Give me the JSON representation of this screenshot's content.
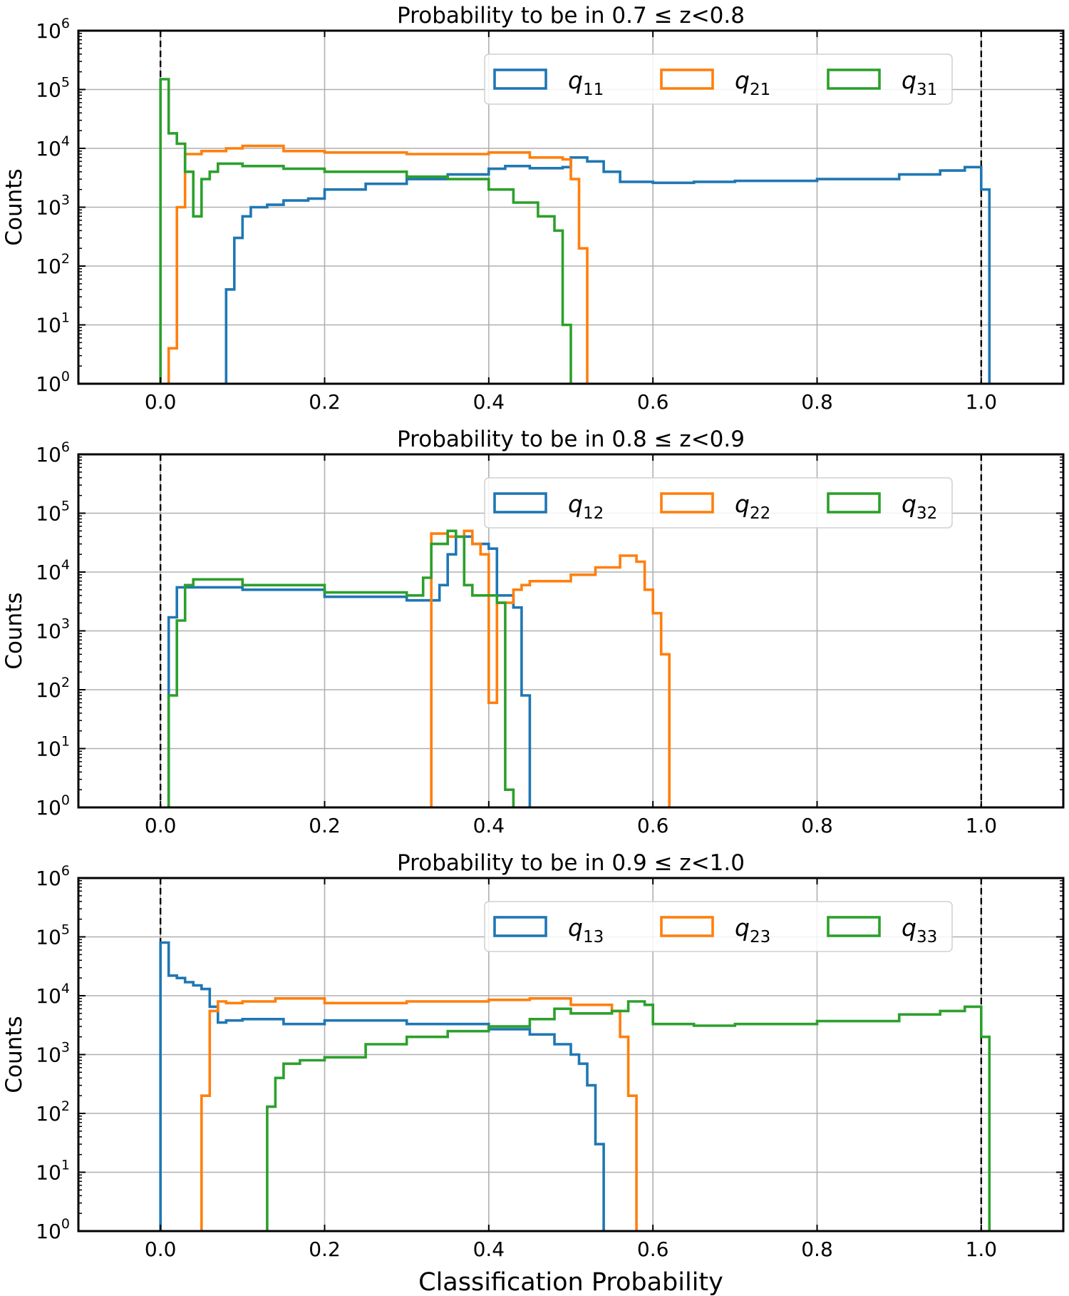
{
  "chart_data": [
    {
      "type": "histogram-step",
      "title": "Probability to be in 0.7 ≤ z<0.8",
      "xlabel": "",
      "ylabel": "Counts",
      "xlim": [
        -0.1,
        1.1
      ],
      "ylim": [
        1,
        1000000
      ],
      "yscale": "log",
      "grid": true,
      "legend_position": "top-right",
      "reference_lines": [
        0.0,
        1.0
      ],
      "x_ticks": [
        "0.0",
        "0.2",
        "0.4",
        "0.6",
        "0.8",
        "1.0"
      ],
      "series": [
        {
          "name": "q",
          "sub": "11",
          "color": "#1f77b4",
          "points": [
            [
              0.08,
              1
            ],
            [
              0.08,
              40
            ],
            [
              0.09,
              40
            ],
            [
              0.09,
              300
            ],
            [
              0.1,
              300
            ],
            [
              0.1,
              700
            ],
            [
              0.11,
              700
            ],
            [
              0.11,
              1000
            ],
            [
              0.13,
              1100
            ],
            [
              0.15,
              1300
            ],
            [
              0.18,
              1400
            ],
            [
              0.2,
              2000
            ],
            [
              0.25,
              2500
            ],
            [
              0.3,
              3000
            ],
            [
              0.35,
              3600
            ],
            [
              0.4,
              4500
            ],
            [
              0.42,
              5000
            ],
            [
              0.45,
              4600
            ],
            [
              0.49,
              4800
            ],
            [
              0.5,
              7000
            ],
            [
              0.52,
              6000
            ],
            [
              0.54,
              4000
            ],
            [
              0.56,
              2700
            ],
            [
              0.6,
              2600
            ],
            [
              0.65,
              2700
            ],
            [
              0.7,
              2800
            ],
            [
              0.8,
              3000
            ],
            [
              0.9,
              3600
            ],
            [
              0.95,
              4200
            ],
            [
              0.98,
              4800
            ],
            [
              1.0,
              4200
            ],
            [
              1.0,
              2000
            ],
            [
              1.01,
              2000
            ],
            [
              1.01,
              1
            ]
          ]
        },
        {
          "name": "q",
          "sub": "21",
          "color": "#ff7f0e",
          "points": [
            [
              0.01,
              1
            ],
            [
              0.01,
              4
            ],
            [
              0.02,
              4
            ],
            [
              0.02,
              1000
            ],
            [
              0.03,
              1000
            ],
            [
              0.03,
              8000
            ],
            [
              0.05,
              9000
            ],
            [
              0.08,
              10000
            ],
            [
              0.1,
              11000
            ],
            [
              0.15,
              9000
            ],
            [
              0.2,
              8500
            ],
            [
              0.3,
              8000
            ],
            [
              0.4,
              8500
            ],
            [
              0.45,
              7000
            ],
            [
              0.49,
              6500
            ],
            [
              0.5,
              3000
            ],
            [
              0.51,
              3000
            ],
            [
              0.51,
              200
            ],
            [
              0.52,
              200
            ],
            [
              0.52,
              1
            ]
          ]
        },
        {
          "name": "q",
          "sub": "31",
          "color": "#2ca02c",
          "points": [
            [
              0.0,
              1
            ],
            [
              0.0,
              150000
            ],
            [
              0.01,
              150000
            ],
            [
              0.01,
              18000
            ],
            [
              0.02,
              12000
            ],
            [
              0.03,
              8000
            ],
            [
              0.03,
              4000
            ],
            [
              0.04,
              4000
            ],
            [
              0.04,
              700
            ],
            [
              0.05,
              700
            ],
            [
              0.05,
              3000
            ],
            [
              0.06,
              4000
            ],
            [
              0.07,
              5500
            ],
            [
              0.1,
              5000
            ],
            [
              0.15,
              4500
            ],
            [
              0.2,
              4000
            ],
            [
              0.3,
              3300
            ],
            [
              0.35,
              3000
            ],
            [
              0.4,
              2000
            ],
            [
              0.43,
              1200
            ],
            [
              0.46,
              700
            ],
            [
              0.48,
              400
            ],
            [
              0.49,
              150
            ],
            [
              0.49,
              10
            ],
            [
              0.5,
              10
            ],
            [
              0.5,
              1
            ]
          ]
        }
      ]
    },
    {
      "type": "histogram-step",
      "title": "Probability to be in 0.8 ≤ z<0.9",
      "xlabel": "",
      "ylabel": "Counts",
      "xlim": [
        -0.1,
        1.1
      ],
      "ylim": [
        1,
        1000000
      ],
      "yscale": "log",
      "grid": true,
      "legend_position": "top-right",
      "reference_lines": [
        0.0,
        1.0
      ],
      "x_ticks": [
        "0.0",
        "0.2",
        "0.4",
        "0.6",
        "0.8",
        "1.0"
      ],
      "series": [
        {
          "name": "q",
          "sub": "12",
          "color": "#1f77b4",
          "points": [
            [
              0.01,
              1
            ],
            [
              0.01,
              1700
            ],
            [
              0.02,
              1700
            ],
            [
              0.02,
              5500
            ],
            [
              0.05,
              5500
            ],
            [
              0.1,
              5000
            ],
            [
              0.2,
              3800
            ],
            [
              0.3,
              3300
            ],
            [
              0.34,
              3300
            ],
            [
              0.34,
              6000
            ],
            [
              0.35,
              6000
            ],
            [
              0.35,
              20000
            ],
            [
              0.36,
              20000
            ],
            [
              0.36,
              40000
            ],
            [
              0.37,
              40000
            ],
            [
              0.38,
              30000
            ],
            [
              0.4,
              25000
            ],
            [
              0.41,
              20000
            ],
            [
              0.41,
              4000
            ],
            [
              0.42,
              4000
            ],
            [
              0.43,
              2500
            ],
            [
              0.44,
              2500
            ],
            [
              0.44,
              80
            ],
            [
              0.45,
              80
            ],
            [
              0.45,
              1
            ]
          ]
        },
        {
          "name": "q",
          "sub": "22",
          "color": "#ff7f0e",
          "points": [
            [
              0.33,
              1
            ],
            [
              0.33,
              45000
            ],
            [
              0.34,
              45000
            ],
            [
              0.35,
              40000
            ],
            [
              0.37,
              50000
            ],
            [
              0.38,
              30000
            ],
            [
              0.39,
              20000
            ],
            [
              0.4,
              10000
            ],
            [
              0.4,
              60
            ],
            [
              0.41,
              60
            ],
            [
              0.41,
              3000
            ],
            [
              0.42,
              3000
            ],
            [
              0.43,
              5000
            ],
            [
              0.44,
              6000
            ],
            [
              0.45,
              7000
            ],
            [
              0.5,
              9000
            ],
            [
              0.53,
              12000
            ],
            [
              0.56,
              19000
            ],
            [
              0.58,
              15000
            ],
            [
              0.59,
              5000
            ],
            [
              0.6,
              2000
            ],
            [
              0.61,
              2000
            ],
            [
              0.61,
              400
            ],
            [
              0.62,
              400
            ],
            [
              0.62,
              1
            ]
          ]
        },
        {
          "name": "q",
          "sub": "32",
          "color": "#2ca02c",
          "points": [
            [
              0.01,
              1
            ],
            [
              0.01,
              80
            ],
            [
              0.02,
              80
            ],
            [
              0.02,
              1500
            ],
            [
              0.03,
              1500
            ],
            [
              0.03,
              6000
            ],
            [
              0.04,
              7500
            ],
            [
              0.1,
              6000
            ],
            [
              0.2,
              4500
            ],
            [
              0.3,
              4000
            ],
            [
              0.32,
              4000
            ],
            [
              0.32,
              8000
            ],
            [
              0.33,
              8000
            ],
            [
              0.33,
              30000
            ],
            [
              0.34,
              30000
            ],
            [
              0.35,
              50000
            ],
            [
              0.36,
              40000
            ],
            [
              0.37,
              6000
            ],
            [
              0.38,
              4000
            ],
            [
              0.4,
              4000
            ],
            [
              0.41,
              4000
            ],
            [
              0.41,
              3000
            ],
            [
              0.42,
              3000
            ],
            [
              0.42,
              2
            ],
            [
              0.43,
              2
            ],
            [
              0.43,
              1
            ]
          ]
        }
      ]
    },
    {
      "type": "histogram-step",
      "title": "Probability to be in 0.9 ≤ z<1.0",
      "xlabel": "Classification Probability",
      "ylabel": "Counts",
      "xlim": [
        -0.1,
        1.1
      ],
      "ylim": [
        1,
        1000000
      ],
      "yscale": "log",
      "grid": true,
      "legend_position": "top-right",
      "reference_lines": [
        0.0,
        1.0
      ],
      "x_ticks": [
        "0.0",
        "0.2",
        "0.4",
        "0.6",
        "0.8",
        "1.0"
      ],
      "series": [
        {
          "name": "q",
          "sub": "13",
          "color": "#1f77b4",
          "points": [
            [
              0.0,
              1
            ],
            [
              0.0,
              80000
            ],
            [
              0.01,
              80000
            ],
            [
              0.01,
              22000
            ],
            [
              0.02,
              20000
            ],
            [
              0.03,
              17000
            ],
            [
              0.04,
              15000
            ],
            [
              0.05,
              13000
            ],
            [
              0.06,
              13000
            ],
            [
              0.06,
              6500
            ],
            [
              0.07,
              6500
            ],
            [
              0.07,
              3500
            ],
            [
              0.08,
              3800
            ],
            [
              0.1,
              4000
            ],
            [
              0.15,
              3300
            ],
            [
              0.2,
              3800
            ],
            [
              0.3,
              3300
            ],
            [
              0.4,
              2700
            ],
            [
              0.45,
              2200
            ],
            [
              0.48,
              1500
            ],
            [
              0.5,
              1000
            ],
            [
              0.51,
              700
            ],
            [
              0.52,
              300
            ],
            [
              0.53,
              30
            ],
            [
              0.54,
              30
            ],
            [
              0.54,
              1
            ]
          ]
        },
        {
          "name": "q",
          "sub": "23",
          "color": "#ff7f0e",
          "points": [
            [
              0.05,
              1
            ],
            [
              0.05,
              200
            ],
            [
              0.06,
              200
            ],
            [
              0.06,
              5500
            ],
            [
              0.07,
              5500
            ],
            [
              0.07,
              8000
            ],
            [
              0.08,
              7500
            ],
            [
              0.1,
              8000
            ],
            [
              0.14,
              9000
            ],
            [
              0.2,
              7500
            ],
            [
              0.3,
              8000
            ],
            [
              0.4,
              8500
            ],
            [
              0.45,
              9000
            ],
            [
              0.5,
              7000
            ],
            [
              0.55,
              5500
            ],
            [
              0.56,
              2000
            ],
            [
              0.57,
              700
            ],
            [
              0.57,
              200
            ],
            [
              0.58,
              200
            ],
            [
              0.58,
              1
            ]
          ]
        },
        {
          "name": "q",
          "sub": "33",
          "color": "#2ca02c",
          "points": [
            [
              0.13,
              1
            ],
            [
              0.13,
              130
            ],
            [
              0.14,
              130
            ],
            [
              0.14,
              400
            ],
            [
              0.15,
              700
            ],
            [
              0.17,
              800
            ],
            [
              0.2,
              900
            ],
            [
              0.25,
              1500
            ],
            [
              0.3,
              2000
            ],
            [
              0.35,
              2500
            ],
            [
              0.4,
              3000
            ],
            [
              0.45,
              4000
            ],
            [
              0.48,
              6000
            ],
            [
              0.5,
              5000
            ],
            [
              0.55,
              5500
            ],
            [
              0.57,
              8000
            ],
            [
              0.59,
              7000
            ],
            [
              0.6,
              3300
            ],
            [
              0.65,
              3100
            ],
            [
              0.7,
              3300
            ],
            [
              0.8,
              3700
            ],
            [
              0.9,
              4800
            ],
            [
              0.95,
              5500
            ],
            [
              0.98,
              6500
            ],
            [
              1.0,
              6000
            ],
            [
              1.0,
              2000
            ],
            [
              1.01,
              2000
            ],
            [
              1.01,
              1
            ]
          ]
        }
      ]
    }
  ]
}
